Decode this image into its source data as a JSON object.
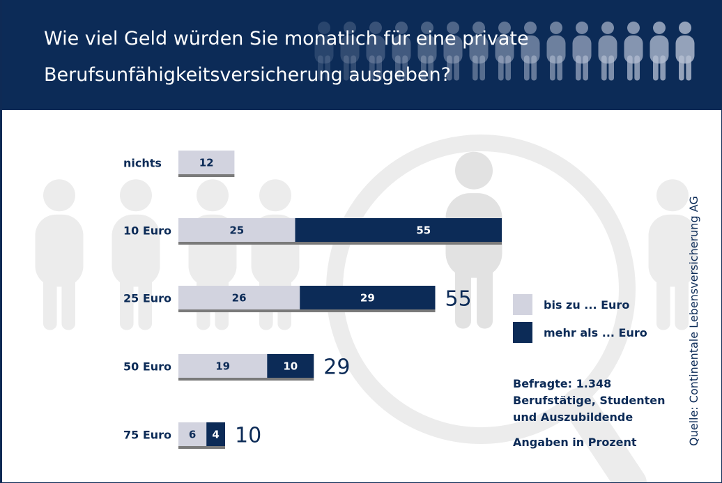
{
  "header": {
    "title_line1": "Wie viel Geld würden Sie monatlich für eine private",
    "title_line2": "Berufsunfähigkeitsversicherung ausgeben?"
  },
  "colors": {
    "header_bg": "#0c2b57",
    "series_light": "#d2d3df",
    "series_dark": "#0c2b57",
    "underline": "#7a7a7a",
    "background_art": "#ececec"
  },
  "chart_data": {
    "type": "bar",
    "orientation": "horizontal",
    "stacked": true,
    "categories": [
      "nichts",
      "10 Euro",
      "25 Euro",
      "50 Euro",
      "75 Euro"
    ],
    "series": [
      {
        "name": "bis zu ... Euro",
        "values": [
          12,
          25,
          26,
          19,
          6
        ]
      },
      {
        "name": "mehr als ... Euro",
        "values": [
          null,
          55,
          29,
          10,
          4
        ]
      }
    ],
    "totals": [
      null,
      80,
      55,
      29,
      10
    ],
    "xlim": [
      0,
      80
    ],
    "grid": false,
    "legend_position": "right"
  },
  "legend": {
    "items": [
      {
        "label": "bis zu ... Euro",
        "color": "#d2d3df"
      },
      {
        "label": "mehr als ... Euro",
        "color": "#0c2b57"
      }
    ]
  },
  "note": {
    "line1": "Befragte: 1.348",
    "line2": "Berufstätige, Studenten",
    "line3": "und Auszubildende",
    "unit": "Angaben in Prozent"
  },
  "source": "Quelle: Continentale Lebensversicherung AG"
}
